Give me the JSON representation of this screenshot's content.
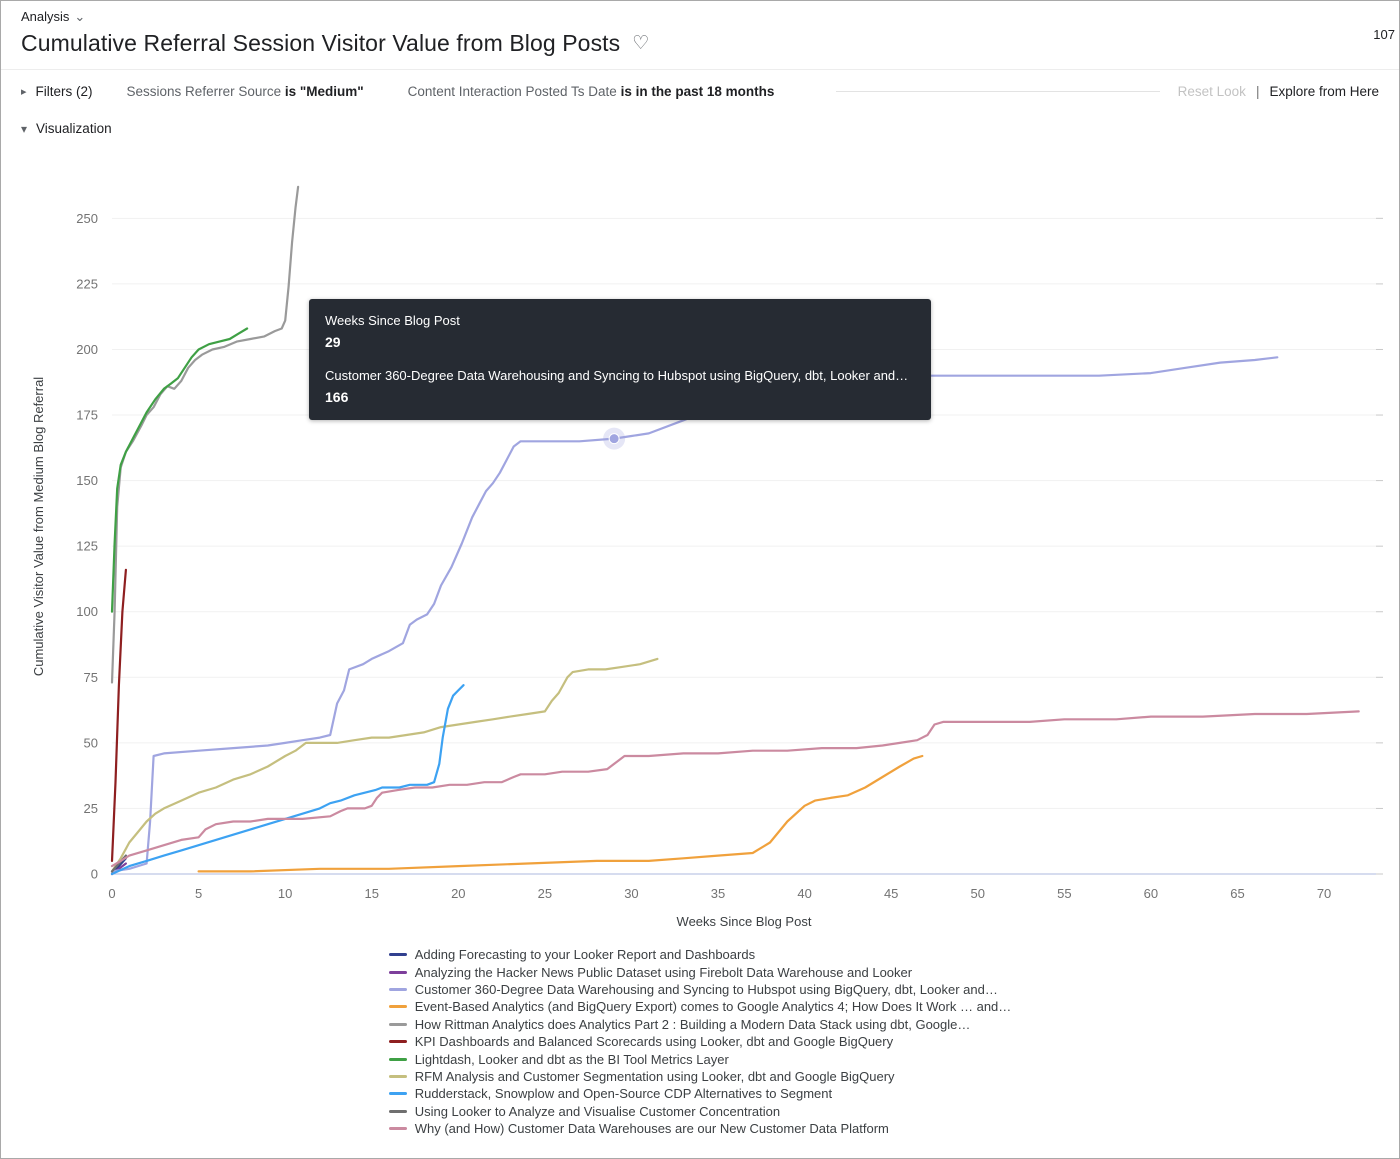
{
  "header": {
    "breadcrumb": "Analysis",
    "title": "Cumulative Referral Session Visitor Value from Blog Posts",
    "top_right_number": "107"
  },
  "icons": {
    "analysis_caret": "⌄",
    "filters_expand": "▸",
    "viz_collapse": "▾",
    "favorite": "♡",
    "separator": "|"
  },
  "filters": {
    "label": "Filters (2)",
    "items": [
      {
        "field": "Sessions Referrer Source ",
        "cond": "is \"Medium\""
      },
      {
        "field": "Content Interaction Posted Ts Date ",
        "cond": "is in the past 18 months"
      }
    ],
    "reset_label": "Reset Look",
    "explore_label": "Explore from Here"
  },
  "visualization": {
    "label": "Visualization"
  },
  "tooltip": {
    "x_label": "Weeks Since Blog Post",
    "x_value": "29",
    "series_label": "Customer 360-Degree Data Warehousing and Syncing to Hubspot using BigQuery, dbt, Looker and…",
    "value": "166"
  },
  "chart_data": {
    "type": "line",
    "xlabel": "Weeks Since Blog Post",
    "ylabel": "Cumulative Visitor Value from Medium Blog Referral",
    "xlim": [
      0,
      73
    ],
    "ylim": [
      0,
      265
    ],
    "xticks": [
      0,
      5,
      10,
      15,
      20,
      25,
      30,
      35,
      40,
      45,
      50,
      55,
      60,
      65,
      70
    ],
    "yticks": [
      0,
      25,
      50,
      75,
      100,
      125,
      150,
      175,
      200,
      225,
      250
    ],
    "grid": "horizontal",
    "legend_position": "bottom",
    "highlight": {
      "x": 29,
      "y": 166,
      "series": "Customer 360-Degree Data Warehousing and Syncing to Hubspot using BigQuery, dbt, Looker and…",
      "color": "#a0a5e0"
    },
    "series": [
      {
        "name": "Adding Forecasting to your Looker Report and Dashboards",
        "color": "#31408f",
        "points": [
          [
            0,
            0
          ],
          [
            0.4,
            3
          ],
          [
            0.8,
            6
          ]
        ]
      },
      {
        "name": "Analyzing the Hacker News Public Dataset using Firebolt Data Warehouse and Looker",
        "color": "#7d3f9b",
        "points": [
          [
            0,
            0
          ],
          [
            0.4,
            2
          ],
          [
            0.8,
            4
          ]
        ]
      },
      {
        "name": "Customer 360-Degree Data Warehousing and Syncing to Hubspot using BigQuery, dbt, Looker and…",
        "color": "#a0a5e0",
        "points": [
          [
            0,
            1
          ],
          [
            1,
            2
          ],
          [
            2,
            4
          ],
          [
            2.2,
            20
          ],
          [
            2.4,
            45
          ],
          [
            3,
            46
          ],
          [
            5,
            47
          ],
          [
            7,
            48
          ],
          [
            9,
            49
          ],
          [
            10,
            50
          ],
          [
            11,
            51
          ],
          [
            12,
            52
          ],
          [
            12.6,
            53
          ],
          [
            13,
            65
          ],
          [
            13.4,
            70
          ],
          [
            13.7,
            78
          ],
          [
            14.5,
            80
          ],
          [
            15,
            82
          ],
          [
            16,
            85
          ],
          [
            16.8,
            88
          ],
          [
            17.2,
            95
          ],
          [
            17.6,
            97
          ],
          [
            18.2,
            99
          ],
          [
            18.6,
            103
          ],
          [
            19,
            110
          ],
          [
            19.6,
            117
          ],
          [
            20.2,
            126
          ],
          [
            20.8,
            136
          ],
          [
            21.2,
            141
          ],
          [
            21.6,
            146
          ],
          [
            22,
            149
          ],
          [
            22.4,
            153
          ],
          [
            22.8,
            158
          ],
          [
            23.2,
            163
          ],
          [
            23.6,
            165
          ],
          [
            25,
            165
          ],
          [
            27,
            165
          ],
          [
            29,
            166
          ],
          [
            30,
            167
          ],
          [
            31,
            168
          ],
          [
            33,
            173
          ],
          [
            36,
            181
          ],
          [
            40,
            187
          ],
          [
            44,
            189
          ],
          [
            47,
            190
          ],
          [
            52,
            190
          ],
          [
            57,
            190
          ],
          [
            60,
            191
          ],
          [
            62,
            193
          ],
          [
            64,
            195
          ],
          [
            66,
            196
          ],
          [
            67.3,
            197
          ]
        ]
      },
      {
        "name": "Event-Based Analytics (and BigQuery Export) comes to Google Analytics 4; How Does It Work … and…",
        "color": "#f0a13c",
        "points": [
          [
            5,
            1
          ],
          [
            8,
            1
          ],
          [
            12,
            2
          ],
          [
            16,
            2
          ],
          [
            20,
            3
          ],
          [
            24,
            4
          ],
          [
            28,
            5
          ],
          [
            31,
            5
          ],
          [
            33,
            6
          ],
          [
            35,
            7
          ],
          [
            37,
            8
          ],
          [
            38,
            12
          ],
          [
            39,
            20
          ],
          [
            40,
            26
          ],
          [
            40.6,
            28
          ],
          [
            41.5,
            29
          ],
          [
            42.5,
            30
          ],
          [
            43.5,
            33
          ],
          [
            44.5,
            37
          ],
          [
            45.5,
            41
          ],
          [
            46.3,
            44
          ],
          [
            46.8,
            45
          ]
        ]
      },
      {
        "name": "How Rittman Analytics does Analytics Part 2 : Building a Modern Data Stack using dbt, Google…",
        "color": "#9a9a9a",
        "points": [
          [
            0,
            73
          ],
          [
            0.15,
            100
          ],
          [
            0.3,
            140
          ],
          [
            0.5,
            155
          ],
          [
            0.8,
            161
          ],
          [
            1.2,
            165
          ],
          [
            1.7,
            171
          ],
          [
            2,
            175
          ],
          [
            2.4,
            178
          ],
          [
            2.8,
            183
          ],
          [
            3.2,
            186
          ],
          [
            3.6,
            185
          ],
          [
            4,
            188
          ],
          [
            4.4,
            193
          ],
          [
            4.8,
            196
          ],
          [
            5.2,
            198
          ],
          [
            5.8,
            200
          ],
          [
            6.5,
            201
          ],
          [
            7.2,
            203
          ],
          [
            8,
            204
          ],
          [
            8.8,
            205
          ],
          [
            9.4,
            207
          ],
          [
            9.8,
            208
          ],
          [
            10,
            211
          ],
          [
            10.2,
            224
          ],
          [
            10.4,
            241
          ],
          [
            10.6,
            254
          ],
          [
            10.75,
            262
          ]
        ]
      },
      {
        "name": "KPI Dashboards and Balanced Scorecards using Looker, dbt and Google BigQuery",
        "color": "#8e1f20",
        "points": [
          [
            0,
            5
          ],
          [
            0.2,
            35
          ],
          [
            0.4,
            72
          ],
          [
            0.6,
            100
          ],
          [
            0.8,
            116
          ]
        ]
      },
      {
        "name": "Lightdash, Looker and dbt as the BI Tool Metrics Layer",
        "color": "#3fa045",
        "points": [
          [
            0,
            100
          ],
          [
            0.15,
            126
          ],
          [
            0.3,
            147
          ],
          [
            0.5,
            156
          ],
          [
            0.8,
            161
          ],
          [
            1.2,
            166
          ],
          [
            1.6,
            171
          ],
          [
            2,
            176
          ],
          [
            2.5,
            181
          ],
          [
            3,
            185
          ],
          [
            3.4,
            187
          ],
          [
            3.8,
            189
          ],
          [
            4.2,
            193
          ],
          [
            4.6,
            197
          ],
          [
            5,
            200
          ],
          [
            5.6,
            202
          ],
          [
            6.2,
            203
          ],
          [
            6.8,
            204
          ],
          [
            7.3,
            206
          ],
          [
            7.8,
            208
          ]
        ]
      },
      {
        "name": "RFM Analysis and Customer Segmentation using Looker, dbt and Google BigQuery",
        "color": "#c5bf7f",
        "points": [
          [
            0,
            1
          ],
          [
            0.5,
            6
          ],
          [
            1,
            12
          ],
          [
            1.5,
            16
          ],
          [
            2,
            20
          ],
          [
            2.5,
            23
          ],
          [
            3,
            25
          ],
          [
            4,
            28
          ],
          [
            5,
            31
          ],
          [
            6,
            33
          ],
          [
            7,
            36
          ],
          [
            8,
            38
          ],
          [
            9,
            41
          ],
          [
            10,
            45
          ],
          [
            10.6,
            47
          ],
          [
            11.2,
            50
          ],
          [
            13,
            50
          ],
          [
            14,
            51
          ],
          [
            15,
            52
          ],
          [
            16,
            52
          ],
          [
            17,
            53
          ],
          [
            18,
            54
          ],
          [
            19,
            56
          ],
          [
            20,
            57
          ],
          [
            21,
            58
          ],
          [
            22,
            59
          ],
          [
            23,
            60
          ],
          [
            24,
            61
          ],
          [
            25,
            62
          ],
          [
            25.4,
            66
          ],
          [
            25.8,
            69
          ],
          [
            26.3,
            75
          ],
          [
            26.6,
            77
          ],
          [
            27.5,
            78
          ],
          [
            28.5,
            78
          ],
          [
            29.5,
            79
          ],
          [
            30.5,
            80
          ],
          [
            31.5,
            82
          ]
        ]
      },
      {
        "name": "Rudderstack, Snowplow and Open-Source CDP Alternatives to Segment",
        "color": "#3da2f2",
        "points": [
          [
            0,
            0
          ],
          [
            1,
            3
          ],
          [
            2,
            5
          ],
          [
            3,
            7
          ],
          [
            4,
            9
          ],
          [
            5,
            11
          ],
          [
            6,
            13
          ],
          [
            7,
            15
          ],
          [
            8,
            17
          ],
          [
            9,
            19
          ],
          [
            10,
            21
          ],
          [
            11,
            23
          ],
          [
            12,
            25
          ],
          [
            12.6,
            27
          ],
          [
            13.2,
            28
          ],
          [
            14,
            30
          ],
          [
            14.6,
            31
          ],
          [
            15.2,
            32
          ],
          [
            15.6,
            33
          ],
          [
            16.6,
            33
          ],
          [
            17.2,
            34
          ],
          [
            18.2,
            34
          ],
          [
            18.6,
            35
          ],
          [
            18.9,
            42
          ],
          [
            19.1,
            52
          ],
          [
            19.4,
            63
          ],
          [
            19.7,
            68
          ],
          [
            20,
            70
          ],
          [
            20.3,
            72
          ]
        ]
      },
      {
        "name": "Using Looker to Analyze and Visualise Customer Concentration",
        "color": "#6f6f6f",
        "points": [
          [
            0,
            1
          ],
          [
            0.4,
            4
          ],
          [
            0.8,
            7
          ]
        ]
      },
      {
        "name": "Why (and How) Customer Data Warehouses are our New Customer Data Platform",
        "color": "#cb8aa0",
        "points": [
          [
            0,
            3
          ],
          [
            0.5,
            5
          ],
          [
            1,
            7
          ],
          [
            2,
            9
          ],
          [
            3,
            11
          ],
          [
            4,
            13
          ],
          [
            5,
            14
          ],
          [
            5.4,
            17
          ],
          [
            6,
            19
          ],
          [
            7,
            20
          ],
          [
            8,
            20
          ],
          [
            9,
            21
          ],
          [
            11,
            21
          ],
          [
            12.6,
            22
          ],
          [
            13.2,
            24
          ],
          [
            13.6,
            25
          ],
          [
            14.6,
            25
          ],
          [
            15,
            26
          ],
          [
            15.3,
            29
          ],
          [
            15.6,
            31
          ],
          [
            16.5,
            32
          ],
          [
            17.5,
            33
          ],
          [
            18.5,
            33
          ],
          [
            19.5,
            34
          ],
          [
            20.5,
            34
          ],
          [
            21.5,
            35
          ],
          [
            22.5,
            35
          ],
          [
            23.2,
            37
          ],
          [
            23.6,
            38
          ],
          [
            25,
            38
          ],
          [
            26,
            39
          ],
          [
            27.5,
            39
          ],
          [
            28.6,
            40
          ],
          [
            29.2,
            43
          ],
          [
            29.6,
            45
          ],
          [
            31,
            45
          ],
          [
            33,
            46
          ],
          [
            35,
            46
          ],
          [
            37,
            47
          ],
          [
            39,
            47
          ],
          [
            41,
            48
          ],
          [
            43,
            48
          ],
          [
            44.5,
            49
          ],
          [
            45.5,
            50
          ],
          [
            46.5,
            51
          ],
          [
            47.1,
            53
          ],
          [
            47.5,
            57
          ],
          [
            48,
            58
          ],
          [
            50,
            58
          ],
          [
            53,
            58
          ],
          [
            55,
            59
          ],
          [
            58,
            59
          ],
          [
            60,
            60
          ],
          [
            63,
            60
          ],
          [
            66,
            61
          ],
          [
            69,
            61
          ],
          [
            72,
            62
          ]
        ]
      }
    ]
  }
}
